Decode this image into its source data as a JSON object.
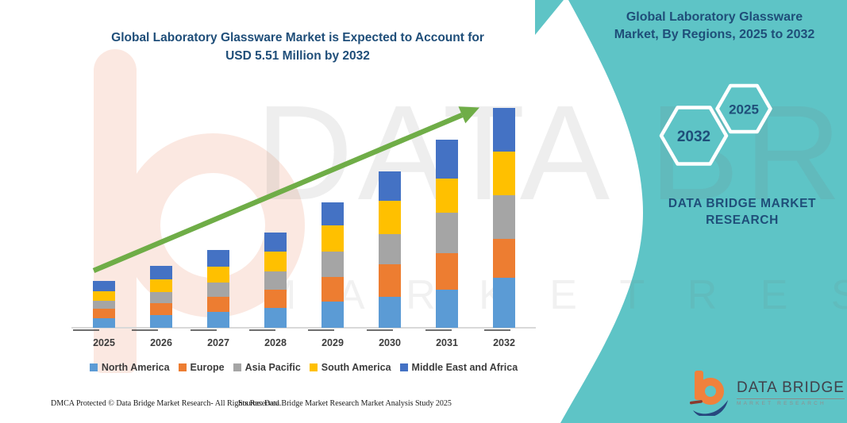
{
  "chart": {
    "title_line1": "Global Laboratory Glassware Market is Expected to Account for",
    "title_line2": "USD 5.51 Million by 2032"
  },
  "chart_data": {
    "type": "stacked-bar",
    "title": "Global Laboratory Glassware Market is Expected to Account for USD 5.51 Million by 2032",
    "unit": "USD Million",
    "categories": [
      "2025",
      "2026",
      "2027",
      "2028",
      "2029",
      "2030",
      "2031",
      "2032"
    ],
    "series": [
      {
        "name": "North America",
        "color": "#5B9BD5",
        "values": [
          0.24,
          0.31,
          0.4,
          0.49,
          0.65,
          0.77,
          0.96,
          1.25
        ]
      },
      {
        "name": "Europe",
        "color": "#ED7D31",
        "values": [
          0.23,
          0.3,
          0.38,
          0.47,
          0.63,
          0.82,
          0.9,
          0.97
        ]
      },
      {
        "name": "Asia Pacific",
        "color": "#A5A5A5",
        "values": [
          0.2,
          0.28,
          0.36,
          0.45,
          0.63,
          0.76,
          1.02,
          1.1
        ]
      },
      {
        "name": "South America",
        "color": "#FFC000",
        "values": [
          0.25,
          0.32,
          0.4,
          0.49,
          0.66,
          0.83,
          0.86,
          1.09
        ]
      },
      {
        "name": "Middle East and Africa",
        "color": "#4472C4",
        "values": [
          0.25,
          0.34,
          0.41,
          0.49,
          0.57,
          0.74,
          0.97,
          1.1
        ]
      }
    ],
    "totals": [
      1.17,
      1.55,
      1.95,
      2.39,
      3.14,
      3.92,
      4.71,
      5.51
    ],
    "legend_position": "bottom",
    "value_axis_visible": false,
    "trend_arrow": true
  },
  "side_panel": {
    "heading_line1": "Global Laboratory Glassware",
    "heading_line2": "Market, By Regions, 2025 to 2032",
    "hexagon_back_label": "2032",
    "hexagon_front_label": "2025",
    "brand_line1": "DATA BRIDGE MARKET",
    "brand_line2": "RESEARCH",
    "background_color": "#5EC4C6"
  },
  "logo": {
    "title": "DATA BRIDGE",
    "subtitle": "MARKET RESEARCH"
  },
  "footer": {
    "dmca": "DMCA Protected © Data Bridge Market Research-  All Rights Reserved.",
    "source": "Source: Data Bridge Market Research  Market Analysis Study 2025"
  },
  "watermark": {
    "line1": "DATA BRIDGE",
    "line2": "M A R K E T   R E S E A R C H"
  },
  "colors": {
    "teal": "#5EC4C6",
    "heading_blue": "#1F4E79",
    "arrow_green": "#6FAD47",
    "axis_gray": "#D9D9D9",
    "label_gray": "#3C3C3C"
  }
}
